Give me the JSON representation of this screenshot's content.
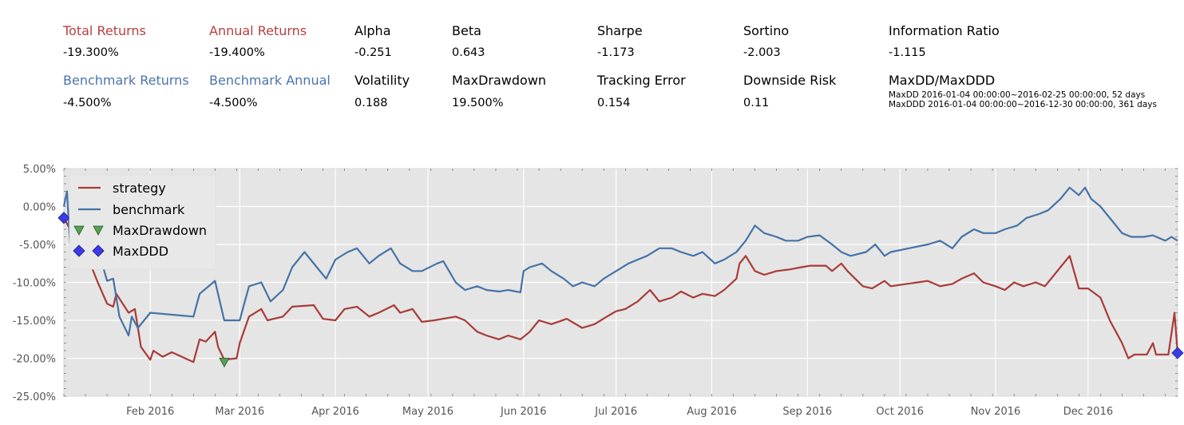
{
  "colors": {
    "strategy": "#a83b38",
    "benchmark": "#4572a7",
    "drawdown_marker": "#55a052",
    "ddd_marker": "#3b3be8",
    "plot_bg": "#e5e5e5",
    "grid": "#ffffff"
  },
  "metrics": [
    {
      "label": "Total Returns",
      "value": "-19.300%",
      "color": "#b5403e"
    },
    {
      "label": "Annual Returns",
      "value": "-19.400%",
      "color": "#b5403e"
    },
    {
      "label": "Alpha",
      "value": "-0.251",
      "color": "#000000"
    },
    {
      "label": "Beta",
      "value": "0.643",
      "color": "#000000"
    },
    {
      "label": "Sharpe",
      "value": "-1.173",
      "color": "#000000"
    },
    {
      "label": "Sortino",
      "value": "-2.003",
      "color": "#000000"
    },
    {
      "label": "Information Ratio",
      "value": "-1.115",
      "color": "#000000"
    },
    {
      "label": "Benchmark Returns",
      "value": "-4.500%",
      "color": "#4a74ad"
    },
    {
      "label": "Benchmark Annual",
      "value": "-4.500%",
      "color": "#4a74ad"
    },
    {
      "label": "Volatility",
      "value": "0.188",
      "color": "#000000"
    },
    {
      "label": "MaxDrawdown",
      "value": "19.500%",
      "color": "#000000"
    },
    {
      "label": "Tracking Error",
      "value": "0.154",
      "color": "#000000"
    },
    {
      "label": "Downside Risk",
      "value": "0.11",
      "color": "#000000"
    },
    {
      "label": "MaxDD/MaxDDD",
      "value": "",
      "color": "#000000"
    }
  ],
  "maxdd_line": "MaxDD  2016-01-04 00:00:00~2016-02-25 00:00:00, 52 days",
  "maxddd_line": "MaxDDD 2016-01-04 00:00:00~2016-12-30 00:00:00, 361 days",
  "chart_data": {
    "type": "line",
    "x_range": [
      "2016-01-04",
      "2016-12-30"
    ],
    "ylim": [
      -25,
      5
    ],
    "yticks": [
      5,
      0,
      -5,
      -10,
      -15,
      -20,
      -25
    ],
    "ytick_labels": [
      "5.00%",
      "0.00%",
      "-5.00%",
      "-10.00%",
      "-15.00%",
      "-20.00%",
      "-25.00%"
    ],
    "xticks": [
      "2016-02-01",
      "2016-03-01",
      "2016-04-01",
      "2016-05-01",
      "2016-06-01",
      "2016-07-01",
      "2016-08-01",
      "2016-09-01",
      "2016-10-01",
      "2016-11-01",
      "2016-12-01"
    ],
    "xtick_labels": [
      "Feb 2016",
      "Mar 2016",
      "Apr 2016",
      "May 2016",
      "Jun 2016",
      "Jul 2016",
      "Aug 2016",
      "Sep 2016",
      "Oct 2016",
      "Nov 2016",
      "Dec 2016"
    ],
    "legend": {
      "placement": "top-left",
      "entries": [
        "strategy",
        "benchmark",
        "MaxDrawdown",
        "MaxDDD"
      ]
    },
    "grid": true,
    "series": [
      {
        "name": "strategy",
        "points": [
          [
            "2016-01-04",
            -1.5
          ],
          [
            "2016-01-06",
            -3.0
          ],
          [
            "2016-01-08",
            -4.5
          ],
          [
            "2016-01-11",
            -6.0
          ],
          [
            "2016-01-13",
            -8.0
          ],
          [
            "2016-01-15",
            -10.0
          ],
          [
            "2016-01-18",
            -12.8
          ],
          [
            "2016-01-20",
            -13.2
          ],
          [
            "2016-01-21",
            -11.5
          ],
          [
            "2016-01-25",
            -14.0
          ],
          [
            "2016-01-27",
            -13.5
          ],
          [
            "2016-01-29",
            -18.5
          ],
          [
            "2016-02-01",
            -20.2
          ],
          [
            "2016-02-02",
            -19.0
          ],
          [
            "2016-02-05",
            -19.8
          ],
          [
            "2016-02-08",
            -19.2
          ],
          [
            "2016-02-15",
            -20.5
          ],
          [
            "2016-02-17",
            -17.5
          ],
          [
            "2016-02-19",
            -17.8
          ],
          [
            "2016-02-22",
            -16.5
          ],
          [
            "2016-02-23",
            -18.5
          ],
          [
            "2016-02-25",
            -20.2
          ],
          [
            "2016-02-29",
            -20.0
          ],
          [
            "2016-03-01",
            -18.0
          ],
          [
            "2016-03-04",
            -14.5
          ],
          [
            "2016-03-08",
            -13.5
          ],
          [
            "2016-03-10",
            -15.0
          ],
          [
            "2016-03-15",
            -14.5
          ],
          [
            "2016-03-18",
            -13.2
          ],
          [
            "2016-03-25",
            -13.0
          ],
          [
            "2016-03-28",
            -14.8
          ],
          [
            "2016-04-01",
            -15.0
          ],
          [
            "2016-04-04",
            -13.5
          ],
          [
            "2016-04-08",
            -13.2
          ],
          [
            "2016-04-12",
            -14.5
          ],
          [
            "2016-04-15",
            -14.0
          ],
          [
            "2016-04-20",
            -13.0
          ],
          [
            "2016-04-22",
            -14.0
          ],
          [
            "2016-04-26",
            -13.5
          ],
          [
            "2016-04-29",
            -15.2
          ],
          [
            "2016-05-03",
            -15.0
          ],
          [
            "2016-05-10",
            -14.5
          ],
          [
            "2016-05-13",
            -15.0
          ],
          [
            "2016-05-17",
            -16.5
          ],
          [
            "2016-05-20",
            -17.0
          ],
          [
            "2016-05-24",
            -17.5
          ],
          [
            "2016-05-27",
            -17.0
          ],
          [
            "2016-05-31",
            -17.5
          ],
          [
            "2016-06-03",
            -16.5
          ],
          [
            "2016-06-06",
            -15.0
          ],
          [
            "2016-06-10",
            -15.5
          ],
          [
            "2016-06-15",
            -14.8
          ],
          [
            "2016-06-20",
            -16.0
          ],
          [
            "2016-06-24",
            -15.5
          ],
          [
            "2016-06-28",
            -14.5
          ],
          [
            "2016-07-01",
            -13.8
          ],
          [
            "2016-07-04",
            -13.5
          ],
          [
            "2016-07-08",
            -12.5
          ],
          [
            "2016-07-12",
            -11.0
          ],
          [
            "2016-07-15",
            -12.5
          ],
          [
            "2016-07-19",
            -12.0
          ],
          [
            "2016-07-22",
            -11.2
          ],
          [
            "2016-07-26",
            -12.0
          ],
          [
            "2016-07-29",
            -11.5
          ],
          [
            "2016-08-02",
            -11.8
          ],
          [
            "2016-08-05",
            -11.0
          ],
          [
            "2016-08-09",
            -9.5
          ],
          [
            "2016-08-10",
            -7.5
          ],
          [
            "2016-08-12",
            -6.5
          ],
          [
            "2016-08-15",
            -8.5
          ],
          [
            "2016-08-18",
            -9.0
          ],
          [
            "2016-08-22",
            -8.5
          ],
          [
            "2016-08-26",
            -8.3
          ],
          [
            "2016-08-30",
            -8.0
          ],
          [
            "2016-09-02",
            -7.8
          ],
          [
            "2016-09-07",
            -7.8
          ],
          [
            "2016-09-09",
            -8.5
          ],
          [
            "2016-09-12",
            -7.5
          ],
          [
            "2016-09-14",
            -8.5
          ],
          [
            "2016-09-19",
            -10.5
          ],
          [
            "2016-09-22",
            -10.8
          ],
          [
            "2016-09-26",
            -9.8
          ],
          [
            "2016-09-28",
            -10.5
          ],
          [
            "2016-10-10",
            -9.8
          ],
          [
            "2016-10-14",
            -10.5
          ],
          [
            "2016-10-18",
            -10.2
          ],
          [
            "2016-10-21",
            -9.5
          ],
          [
            "2016-10-25",
            -8.8
          ],
          [
            "2016-10-28",
            -10.0
          ],
          [
            "2016-11-01",
            -10.5
          ],
          [
            "2016-11-04",
            -11.0
          ],
          [
            "2016-11-07",
            -10.0
          ],
          [
            "2016-11-10",
            -10.5
          ],
          [
            "2016-11-14",
            -10.0
          ],
          [
            "2016-11-17",
            -10.5
          ],
          [
            "2016-11-21",
            -8.5
          ],
          [
            "2016-11-23",
            -7.5
          ],
          [
            "2016-11-25",
            -6.5
          ],
          [
            "2016-11-28",
            -10.8
          ],
          [
            "2016-12-01",
            -10.8
          ],
          [
            "2016-12-05",
            -12.0
          ],
          [
            "2016-12-08",
            -15.0
          ],
          [
            "2016-12-12",
            -18.0
          ],
          [
            "2016-12-14",
            -20.0
          ],
          [
            "2016-12-16",
            -19.5
          ],
          [
            "2016-12-20",
            -19.5
          ],
          [
            "2016-12-22",
            -18.0
          ],
          [
            "2016-12-23",
            -19.5
          ],
          [
            "2016-12-27",
            -19.5
          ],
          [
            "2016-12-29",
            -14.0
          ],
          [
            "2016-12-30",
            -19.3
          ]
        ]
      },
      {
        "name": "benchmark",
        "points": [
          [
            "2016-01-04",
            0.0
          ],
          [
            "2016-01-05",
            2.0
          ],
          [
            "2016-01-06",
            -5.0
          ],
          [
            "2016-01-08",
            -3.0
          ],
          [
            "2016-01-11",
            -7.0
          ],
          [
            "2016-01-13",
            -8.0
          ],
          [
            "2016-01-15",
            -5.5
          ],
          [
            "2016-01-18",
            -9.8
          ],
          [
            "2016-01-20",
            -9.5
          ],
          [
            "2016-01-22",
            -14.5
          ],
          [
            "2016-01-25",
            -17.0
          ],
          [
            "2016-01-26",
            -14.5
          ],
          [
            "2016-01-28",
            -16.0
          ],
          [
            "2016-02-01",
            -14.0
          ],
          [
            "2016-02-15",
            -14.5
          ],
          [
            "2016-02-17",
            -11.5
          ],
          [
            "2016-02-22",
            -9.8
          ],
          [
            "2016-02-25",
            -15.0
          ],
          [
            "2016-03-01",
            -15.0
          ],
          [
            "2016-03-02",
            -13.5
          ],
          [
            "2016-03-04",
            -10.5
          ],
          [
            "2016-03-08",
            -10.0
          ],
          [
            "2016-03-11",
            -12.5
          ],
          [
            "2016-03-15",
            -11.0
          ],
          [
            "2016-03-18",
            -8.0
          ],
          [
            "2016-03-22",
            -6.0
          ],
          [
            "2016-03-24",
            -7.0
          ],
          [
            "2016-03-29",
            -9.5
          ],
          [
            "2016-04-01",
            -7.0
          ],
          [
            "2016-04-05",
            -6.0
          ],
          [
            "2016-04-08",
            -5.5
          ],
          [
            "2016-04-12",
            -7.5
          ],
          [
            "2016-04-15",
            -6.5
          ],
          [
            "2016-04-19",
            -5.5
          ],
          [
            "2016-04-22",
            -7.5
          ],
          [
            "2016-04-26",
            -8.5
          ],
          [
            "2016-04-29",
            -8.5
          ],
          [
            "2016-05-04",
            -7.5
          ],
          [
            "2016-05-06",
            -7.2
          ],
          [
            "2016-05-10",
            -10.0
          ],
          [
            "2016-05-13",
            -11.0
          ],
          [
            "2016-05-17",
            -10.5
          ],
          [
            "2016-05-20",
            -11.0
          ],
          [
            "2016-05-24",
            -11.2
          ],
          [
            "2016-05-27",
            -11.0
          ],
          [
            "2016-05-31",
            -11.3
          ],
          [
            "2016-06-01",
            -8.5
          ],
          [
            "2016-06-03",
            -8.0
          ],
          [
            "2016-06-07",
            -7.5
          ],
          [
            "2016-06-10",
            -8.5
          ],
          [
            "2016-06-14",
            -9.5
          ],
          [
            "2016-06-17",
            -10.5
          ],
          [
            "2016-06-20",
            -10.0
          ],
          [
            "2016-06-24",
            -10.5
          ],
          [
            "2016-06-27",
            -9.5
          ],
          [
            "2016-07-01",
            -8.5
          ],
          [
            "2016-07-05",
            -7.5
          ],
          [
            "2016-07-08",
            -7.0
          ],
          [
            "2016-07-11",
            -6.5
          ],
          [
            "2016-07-15",
            -5.5
          ],
          [
            "2016-07-19",
            -5.5
          ],
          [
            "2016-07-22",
            -6.0
          ],
          [
            "2016-07-26",
            -6.5
          ],
          [
            "2016-07-29",
            -6.0
          ],
          [
            "2016-08-02",
            -7.5
          ],
          [
            "2016-08-05",
            -7.0
          ],
          [
            "2016-08-09",
            -6.0
          ],
          [
            "2016-08-12",
            -4.5
          ],
          [
            "2016-08-15",
            -2.5
          ],
          [
            "2016-08-18",
            -3.5
          ],
          [
            "2016-08-22",
            -4.0
          ],
          [
            "2016-08-25",
            -4.5
          ],
          [
            "2016-08-29",
            -4.5
          ],
          [
            "2016-09-01",
            -4.0
          ],
          [
            "2016-09-05",
            -3.8
          ],
          [
            "2016-09-09",
            -5.0
          ],
          [
            "2016-09-12",
            -6.0
          ],
          [
            "2016-09-15",
            -6.5
          ],
          [
            "2016-09-20",
            -6.0
          ],
          [
            "2016-09-23",
            -5.0
          ],
          [
            "2016-09-26",
            -6.5
          ],
          [
            "2016-09-28",
            -6.0
          ],
          [
            "2016-10-10",
            -5.0
          ],
          [
            "2016-10-14",
            -4.5
          ],
          [
            "2016-10-18",
            -5.5
          ],
          [
            "2016-10-21",
            -4.0
          ],
          [
            "2016-10-25",
            -3.0
          ],
          [
            "2016-10-28",
            -3.5
          ],
          [
            "2016-11-01",
            -3.5
          ],
          [
            "2016-11-04",
            -3.0
          ],
          [
            "2016-11-08",
            -2.5
          ],
          [
            "2016-11-11",
            -1.5
          ],
          [
            "2016-11-15",
            -1.0
          ],
          [
            "2016-11-18",
            -0.5
          ],
          [
            "2016-11-22",
            1.0
          ],
          [
            "2016-11-25",
            2.5
          ],
          [
            "2016-11-28",
            1.5
          ],
          [
            "2016-11-30",
            2.5
          ],
          [
            "2016-12-02",
            1.0
          ],
          [
            "2016-12-05",
            0.0
          ],
          [
            "2016-12-07",
            -1.0
          ],
          [
            "2016-12-09",
            -2.0
          ],
          [
            "2016-12-12",
            -3.5
          ],
          [
            "2016-12-15",
            -4.0
          ],
          [
            "2016-12-19",
            -4.0
          ],
          [
            "2016-12-22",
            -3.8
          ],
          [
            "2016-12-26",
            -4.5
          ],
          [
            "2016-12-28",
            -4.0
          ],
          [
            "2016-12-30",
            -4.5
          ]
        ]
      }
    ],
    "markers": [
      {
        "name": "MaxDrawdown",
        "shape": "triangle-down",
        "points": [
          [
            "2016-02-25",
            -20.5
          ]
        ]
      },
      {
        "name": "MaxDDD",
        "shape": "diamond",
        "points": [
          [
            "2016-01-04",
            -1.5
          ],
          [
            "2016-12-30",
            -19.3
          ]
        ]
      }
    ]
  }
}
